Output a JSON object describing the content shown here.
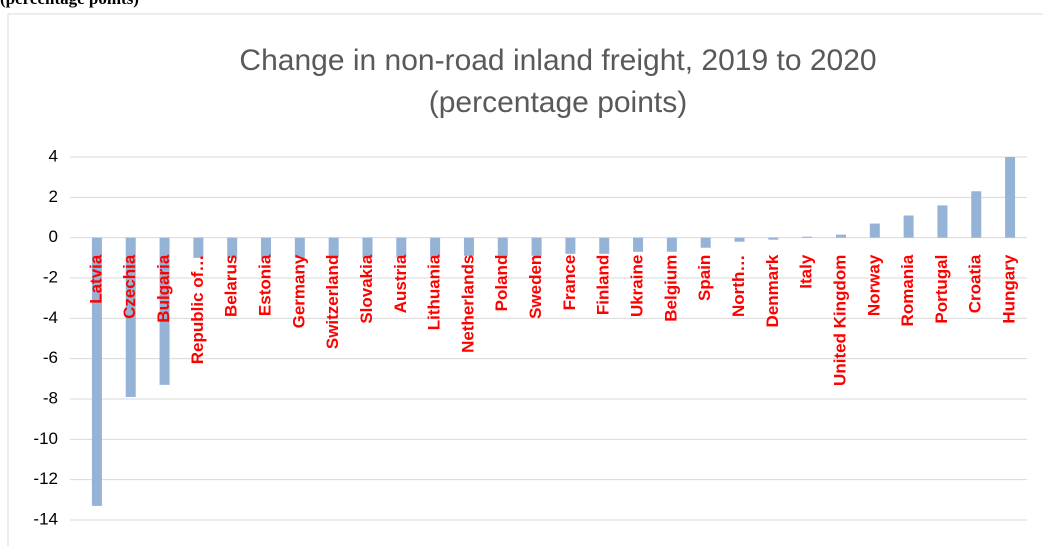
{
  "header_text": "(percentage points)",
  "chart_data": {
    "type": "bar",
    "title": [
      "Change in non-road inland freight, 2019 to 2020",
      "(percentage points)"
    ],
    "categories": [
      "Latvia",
      "Czechia",
      "Bulgaria",
      "Republic of…",
      "Belarus",
      "Estonia",
      "Germany",
      "Switzerland",
      "Slovakia",
      "Austria",
      "Lithuania",
      "Netherlands",
      "Poland",
      "Sweden",
      "France",
      "Finland",
      "Ukraine",
      "Belgium",
      "Spain",
      "North…",
      "Denmark",
      "Italy",
      "United Kingdom",
      "Norway",
      "Romania",
      "Portugal",
      "Croatia",
      "Hungary"
    ],
    "values": [
      -13.3,
      -7.9,
      -7.3,
      -1.0,
      -1.0,
      -1.0,
      -1.0,
      -1.0,
      -1.0,
      -1.0,
      -1.0,
      -0.9,
      -0.9,
      -0.9,
      -0.8,
      -0.8,
      -0.7,
      -0.7,
      -0.5,
      -0.2,
      -0.1,
      0.05,
      0.15,
      0.7,
      1.1,
      1.6,
      2.3,
      4.0
    ],
    "color": "#95b3d7",
    "ylim": [
      -14,
      4
    ],
    "yticks": [
      -14,
      -12,
      -10,
      -8,
      -6,
      -4,
      -2,
      0,
      2,
      4
    ],
    "grid": true
  }
}
